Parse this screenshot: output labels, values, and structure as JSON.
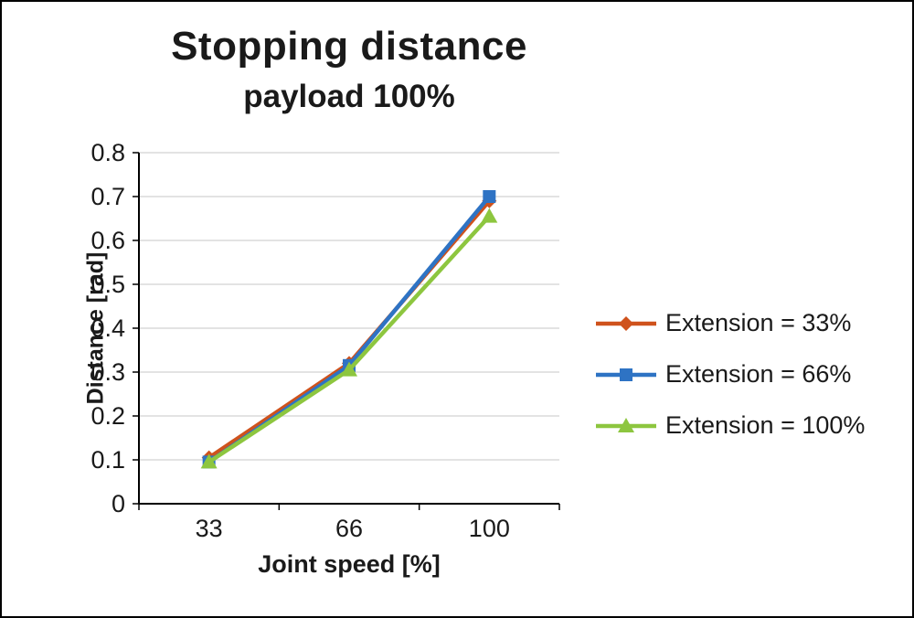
{
  "chart_data": {
    "type": "line",
    "title": "Stopping distance",
    "subtitle": "payload 100%",
    "xlabel": "Joint speed [%]",
    "ylabel": "Distance [rad]",
    "categories": [
      "33",
      "66",
      "100"
    ],
    "series": [
      {
        "name": "Extension = 33%",
        "color": "#cf521c",
        "marker": "diamond",
        "values": [
          0.105,
          0.32,
          0.69
        ]
      },
      {
        "name": "Extension = 66%",
        "color": "#2e73c4",
        "marker": "square",
        "values": [
          0.095,
          0.315,
          0.7
        ]
      },
      {
        "name": "Extension = 100%",
        "color": "#8dc63f",
        "marker": "triangle",
        "values": [
          0.095,
          0.305,
          0.655
        ]
      }
    ],
    "ylim": [
      0,
      0.8
    ],
    "yticks": [
      0,
      0.1,
      0.2,
      0.3,
      0.4,
      0.5,
      0.6,
      0.7,
      0.8
    ],
    "ytick_labels": [
      "0",
      "0.1",
      "0.2",
      "0.3",
      "0.4",
      "0.5",
      "0.6",
      "0.7",
      "0.8"
    ],
    "grid": "horizontal",
    "legend_position": "right",
    "colors": {
      "gridline": "#d2d2d2",
      "axis": "#000000",
      "text": "#1a1a1a",
      "background": "#ffffff"
    }
  }
}
